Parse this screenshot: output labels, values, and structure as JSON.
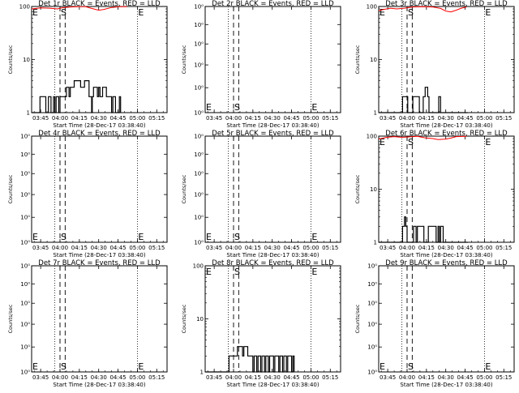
{
  "chart_data": {
    "type": "line",
    "layout": "3x3 grid",
    "x_tick_labels": [
      "03:45",
      "04:00",
      "04:15",
      "04:30",
      "04:45",
      "05:00",
      "05:15"
    ],
    "x_tick_minutes": [
      225,
      240,
      255,
      270,
      285,
      300,
      315
    ],
    "xlim_minutes": [
      218,
      323
    ],
    "xlabel": "Start Time (28-Dec-17 03:38:40)",
    "ylabel": "Counts/sec",
    "colors": {
      "events": "#000000",
      "lld": "#ff0000"
    },
    "marker_labels": {
      "start": "S",
      "end": "E"
    },
    "panels": [
      {
        "title": "Det 1r BLACK = Events, RED = LLD",
        "y_scale": "log",
        "ylim": [
          1,
          100
        ],
        "y_tick_labels": [
          "1",
          "10",
          "100"
        ],
        "y_tick_values": [
          1,
          10,
          100
        ],
        "dotted_lines": [
          236,
          300
        ],
        "dashed_lines": [
          240,
          244
        ],
        "S_at": 240,
        "E_at": 300,
        "marker_pos": "top",
        "lld": [
          [
            218,
            90
          ],
          [
            225,
            94
          ],
          [
            232,
            93
          ],
          [
            238,
            90
          ],
          [
            242,
            95
          ],
          [
            248,
            98
          ],
          [
            254,
            99
          ],
          [
            260,
            99
          ],
          [
            264,
            93
          ],
          [
            270,
            85
          ],
          [
            274,
            88
          ],
          [
            280,
            96
          ],
          [
            286,
            99
          ],
          [
            292,
            99
          ]
        ],
        "events": [
          [
            218,
            1
          ],
          [
            224,
            1
          ],
          [
            224.5,
            2
          ],
          [
            228,
            2
          ],
          [
            229,
            1
          ],
          [
            231,
            2
          ],
          [
            233,
            1
          ],
          [
            235,
            2
          ],
          [
            236,
            1
          ],
          [
            237,
            2
          ],
          [
            239,
            1
          ],
          [
            240,
            2
          ],
          [
            244,
            2
          ],
          [
            245,
            3
          ],
          [
            247,
            2
          ],
          [
            248,
            3
          ],
          [
            250,
            3
          ],
          [
            251,
            4
          ],
          [
            255,
            4
          ],
          [
            256,
            3
          ],
          [
            259,
            4
          ],
          [
            262,
            4
          ],
          [
            262.5,
            2
          ],
          [
            264,
            2
          ],
          [
            264.5,
            1
          ],
          [
            265,
            2
          ],
          [
            266,
            3
          ],
          [
            268,
            3
          ],
          [
            269,
            2
          ],
          [
            270,
            3
          ],
          [
            271,
            2
          ],
          [
            273,
            3
          ],
          [
            275,
            3
          ],
          [
            276,
            2
          ],
          [
            278,
            2
          ],
          [
            280,
            1
          ],
          [
            281,
            2
          ],
          [
            283,
            1
          ],
          [
            284,
            1
          ],
          [
            286,
            2
          ],
          [
            287,
            1
          ]
        ]
      },
      {
        "title": "Det 2r BLACK = Events, RED = LLD",
        "y_scale": "log",
        "ylim": [
          0.8,
          1.2
        ],
        "y_tick_labels": [
          "10⁰",
          "10⁰",
          "10⁰",
          "10⁰",
          "10⁰",
          "10⁰"
        ],
        "y_tick_values": [
          0.8,
          0.88,
          0.96,
          1.04,
          1.12,
          1.2
        ],
        "dotted_lines": [
          236,
          300
        ],
        "dashed_lines": [
          240,
          244
        ],
        "S_at": 240,
        "E_at": 300,
        "marker_pos": "bottom",
        "lld": [],
        "events": []
      },
      {
        "title": "Det 3r BLACK = Events, RED = LLD",
        "y_scale": "log",
        "ylim": [
          1,
          100
        ],
        "y_tick_labels": [
          "1",
          "10",
          "100"
        ],
        "y_tick_values": [
          1,
          10,
          100
        ],
        "dotted_lines": [
          236,
          300
        ],
        "dashed_lines": [
          240,
          244
        ],
        "S_at": 240,
        "E_at": 300,
        "marker_pos": "top",
        "lld": [
          [
            218,
            84
          ],
          [
            222,
            88
          ],
          [
            227,
            93
          ],
          [
            232,
            90
          ],
          [
            238,
            93
          ],
          [
            244,
            98
          ],
          [
            252,
            99
          ],
          [
            260,
            98
          ],
          [
            266,
            92
          ],
          [
            270,
            82
          ],
          [
            274,
            79
          ],
          [
            278,
            85
          ],
          [
            282,
            93
          ],
          [
            286,
            98
          ]
        ],
        "events": [
          [
            218,
            1
          ],
          [
            236,
            1
          ],
          [
            236.5,
            2
          ],
          [
            240,
            2
          ],
          [
            240.5,
            1
          ],
          [
            244,
            1
          ],
          [
            244.5,
            2
          ],
          [
            249,
            2
          ],
          [
            249.5,
            1
          ],
          [
            252,
            1
          ],
          [
            252.5,
            2
          ],
          [
            254,
            3
          ],
          [
            256,
            2
          ],
          [
            257,
            1
          ],
          [
            262,
            1
          ],
          [
            264,
            1
          ],
          [
            264.5,
            2
          ],
          [
            266,
            1
          ],
          [
            287,
            1
          ]
        ]
      },
      {
        "title": "Det 4r BLACK = Events, RED = LLD",
        "y_scale": "log",
        "ylim": [
          0.8,
          1.2
        ],
        "y_tick_labels": [
          "10⁰",
          "10⁰",
          "10⁰",
          "10⁰",
          "10⁰",
          "10⁰"
        ],
        "y_tick_values": [
          0.8,
          0.88,
          0.96,
          1.04,
          1.12,
          1.2
        ],
        "dotted_lines": [
          236,
          300
        ],
        "dashed_lines": [
          240,
          244
        ],
        "S_at": 240,
        "E_at": 300,
        "marker_pos": "bottom",
        "lld": [],
        "events": []
      },
      {
        "title": "Det 5r BLACK = Events, RED = LLD",
        "y_scale": "log",
        "ylim": [
          0.8,
          1.2
        ],
        "y_tick_labels": [
          "10⁰",
          "10⁰",
          "10⁰",
          "10⁰",
          "10⁰",
          "10⁰"
        ],
        "y_tick_values": [
          0.8,
          0.88,
          0.96,
          1.04,
          1.12,
          1.2
        ],
        "dotted_lines": [
          236,
          300
        ],
        "dashed_lines": [
          240,
          244
        ],
        "S_at": 240,
        "E_at": 300,
        "marker_pos": "bottom",
        "lld": [],
        "events": []
      },
      {
        "title": "Det 6r BLACK = Events, RED = LLD",
        "y_scale": "log",
        "ylim": [
          1,
          100
        ],
        "y_tick_labels": [
          "1",
          "10",
          "100"
        ],
        "y_tick_values": [
          1,
          10,
          100
        ],
        "dotted_lines": [
          236,
          300
        ],
        "dashed_lines": [
          240,
          244
        ],
        "S_at": 240,
        "E_at": 300,
        "marker_pos": "top",
        "lld": [
          [
            218,
            88
          ],
          [
            224,
            95
          ],
          [
            230,
            98
          ],
          [
            236,
            95
          ],
          [
            242,
            97
          ],
          [
            248,
            99
          ],
          [
            254,
            93
          ],
          [
            260,
            90
          ],
          [
            264,
            86
          ],
          [
            270,
            88
          ],
          [
            274,
            92
          ],
          [
            278,
            98
          ],
          [
            286,
            99
          ]
        ],
        "events": [
          [
            218,
            1
          ],
          [
            236,
            1
          ],
          [
            236.5,
            2
          ],
          [
            238,
            3
          ],
          [
            239,
            2
          ],
          [
            240,
            1
          ],
          [
            244,
            1
          ],
          [
            245,
            2
          ],
          [
            247,
            1
          ],
          [
            248,
            2
          ],
          [
            250,
            2
          ],
          [
            252,
            2
          ],
          [
            253,
            1
          ],
          [
            256,
            1
          ],
          [
            256.5,
            2
          ],
          [
            262,
            2
          ],
          [
            262.5,
            1
          ],
          [
            264,
            2
          ],
          [
            265,
            1
          ],
          [
            266,
            2
          ],
          [
            268,
            1
          ],
          [
            287,
            1
          ]
        ]
      },
      {
        "title": "Det 7r BLACK = Events, RED = LLD",
        "y_scale": "log",
        "ylim": [
          0.8,
          1.2
        ],
        "y_tick_labels": [
          "10⁰",
          "10⁰",
          "10⁰",
          "10⁰",
          "10⁰",
          "10⁰"
        ],
        "y_tick_values": [
          0.8,
          0.88,
          0.96,
          1.04,
          1.12,
          1.2
        ],
        "dotted_lines": [
          236,
          300
        ],
        "dashed_lines": [
          240,
          244
        ],
        "S_at": 240,
        "E_at": 300,
        "marker_pos": "bottom",
        "lld": [],
        "events": []
      },
      {
        "title": "Det 8r BLACK = Events, RED = LLD",
        "y_scale": "log",
        "ylim": [
          1,
          100
        ],
        "y_tick_labels": [
          "1",
          "10",
          "100"
        ],
        "y_tick_values": [
          1,
          10,
          100
        ],
        "dotted_lines": [
          236,
          300
        ],
        "dashed_lines": [
          240,
          244
        ],
        "S_at": 240,
        "E_at": 300,
        "marker_pos": "top",
        "lld": [],
        "events": [
          [
            218,
            1
          ],
          [
            236,
            1
          ],
          [
            236.5,
            2
          ],
          [
            240,
            2
          ],
          [
            242,
            2
          ],
          [
            243,
            3
          ],
          [
            246,
            3
          ],
          [
            247,
            2
          ],
          [
            248,
            3
          ],
          [
            250,
            3
          ],
          [
            251,
            2
          ],
          [
            252,
            2
          ],
          [
            254,
            2
          ],
          [
            255,
            1
          ],
          [
            256,
            2
          ],
          [
            258,
            1
          ],
          [
            259,
            2
          ],
          [
            260,
            2
          ],
          [
            261,
            1
          ],
          [
            262,
            2
          ],
          [
            264,
            1
          ],
          [
            265,
            2
          ],
          [
            266,
            2
          ],
          [
            267,
            1
          ],
          [
            268,
            2
          ],
          [
            270,
            2
          ],
          [
            271,
            1
          ],
          [
            272,
            2
          ],
          [
            274,
            2
          ],
          [
            275,
            1
          ],
          [
            276,
            2
          ],
          [
            278,
            1
          ],
          [
            279,
            2
          ],
          [
            280,
            2
          ],
          [
            281,
            1
          ],
          [
            282,
            2
          ],
          [
            284,
            2
          ],
          [
            285,
            1
          ],
          [
            286,
            2
          ],
          [
            287,
            1
          ]
        ]
      },
      {
        "title": "Det 9r BLACK = Events, RED = LLD",
        "y_scale": "log",
        "ylim": [
          0.8,
          1.2
        ],
        "y_tick_labels": [
          "10⁰",
          "10⁰",
          "10⁰",
          "10⁰",
          "10⁰",
          "10⁰"
        ],
        "y_tick_values": [
          0.8,
          0.88,
          0.96,
          1.04,
          1.12,
          1.2
        ],
        "dotted_lines": [
          236,
          300
        ],
        "dashed_lines": [
          240,
          244
        ],
        "S_at": 240,
        "E_at": 300,
        "marker_pos": "bottom",
        "lld": [],
        "events": []
      }
    ]
  }
}
